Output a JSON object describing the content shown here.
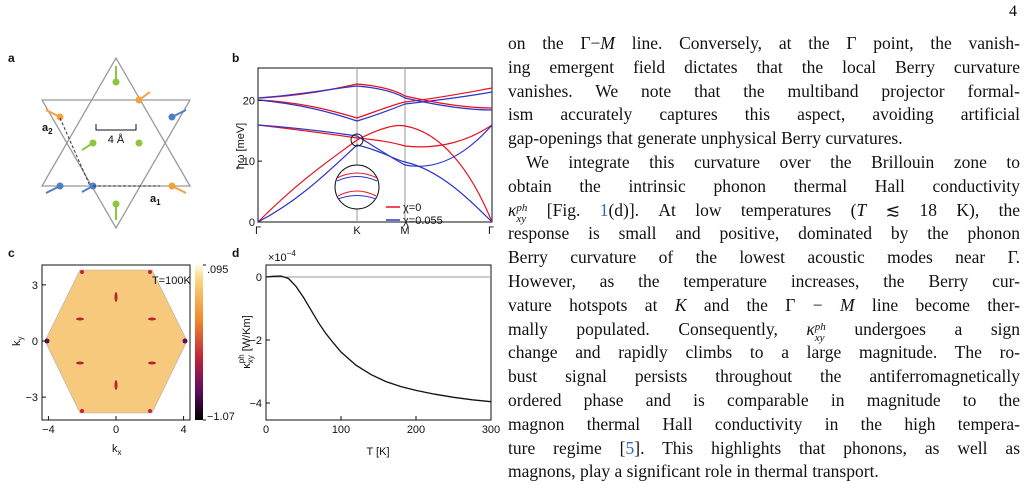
{
  "page_number": "4",
  "figure": {
    "a": {
      "label": "a",
      "scale": "4 Å",
      "a1": {
        "base": "a",
        "sub": "1"
      },
      "a2": {
        "base": "a",
        "sub": "2"
      }
    },
    "b": {
      "label": "b",
      "ylabel": "ħω [meV]",
      "ylim": [
        0,
        25.3
      ],
      "yticks": [
        0,
        10,
        20
      ],
      "categories": [
        "Γ",
        "K",
        "M",
        "Γ"
      ],
      "legend": [
        "χ=0",
        "χ=0.055"
      ],
      "colors": [
        "#e8101e",
        "#2d35c9"
      ]
    },
    "c": {
      "label": "c",
      "xlabel": {
        "base": "k",
        "sub": "x"
      },
      "ylabel": {
        "base": "k",
        "sub": "y"
      },
      "xlim": [
        -4.38,
        4.38
      ],
      "xticks": [
        {
          "value": -4,
          "label": "−4"
        },
        0,
        4
      ],
      "ylim": [
        -4.22,
        4.06
      ],
      "yticks": [
        3,
        0,
        {
          "value": -3,
          "label": "−3"
        }
      ],
      "clim": [
        -1.07,
        0.095
      ],
      "cticks": [
        {
          "value": 0.095,
          "label": ".095"
        },
        {
          "value": -1.07,
          "label": "−1.07"
        }
      ],
      "annotation": "T=100K"
    },
    "d": {
      "label": "d",
      "type": "line",
      "multiplier": {
        "base": "×10",
        "sup": "−4"
      },
      "ylabel": {
        "base": "κ",
        "sub": "xy",
        "sup": "ph",
        "rest": " [W/Km]"
      },
      "xlabel": "T [K]",
      "xlim": [
        0,
        300
      ],
      "xticks": [
        0,
        100,
        200,
        300
      ],
      "ylim": [
        -4.54,
        0.38
      ],
      "yticks": [
        0,
        {
          "value": -2,
          "label": "−2"
        },
        {
          "value": -4,
          "label": "−4"
        }
      ],
      "x": [
        0,
        10,
        20,
        30,
        40,
        50,
        60,
        70,
        80,
        90,
        100,
        120,
        140,
        160,
        180,
        200,
        225,
        250,
        275,
        300
      ],
      "values": [
        0,
        0.02,
        0.03,
        -0.05,
        -0.3,
        -0.65,
        -1.05,
        -1.45,
        -1.8,
        -2.1,
        -2.38,
        -2.8,
        -3.1,
        -3.32,
        -3.48,
        -3.6,
        -3.72,
        -3.82,
        -3.9,
        -3.96
      ]
    }
  },
  "text": {
    "lines": [
      [
        "on the Γ−",
        {
          "math": "M"
        },
        " line. Conversely, at the Γ point, the vanish-"
      ],
      [
        "ing emergent field dictates that the local Berry curvature"
      ],
      [
        "vanishes. We note that the multiband projector formal-"
      ],
      [
        "ism accurately captures this aspect, avoiding artificial"
      ],
      [
        "gap-openings that generate unphysical Berry curvatures."
      ],
      [
        "We integrate this curvature over the Brillouin zone to"
      ],
      [
        "obtain the intrinsic phonon thermal Hall conductivity"
      ],
      [
        {
          "base": "κ",
          "sub": "xy",
          "sup": "ph"
        },
        " [Fig. ",
        {
          "cite": "1"
        },
        "(d)]. At low temperatures (",
        {
          "math": "T"
        },
        " ≲ 18 K), the"
      ],
      [
        "response is small and positive, dominated by the phonon"
      ],
      [
        "Berry curvature of the lowest acoustic modes near Γ."
      ],
      [
        "However, as the temperature increases, the Berry cur-"
      ],
      [
        "vature hotspots at ",
        {
          "math": "K"
        },
        " and the Γ − ",
        {
          "math": "M"
        },
        " line become ther-"
      ],
      [
        "mally populated. Consequently, ",
        {
          "base": "κ",
          "sub": "xy",
          "sup": "ph"
        },
        " undergoes a sign"
      ],
      [
        "change and rapidly climbs to a large magnitude. The ro-"
      ],
      [
        "bust signal persists throughout the antiferromagnetically"
      ],
      [
        "ordered phase and is comparable in magnitude to the"
      ],
      [
        "magnon thermal Hall conductivity in the high tempera-"
      ],
      [
        "ture regime [",
        {
          "cite": "5"
        },
        "]. This highlights that phonons, as well as"
      ],
      [
        "magnons, play a significant role in thermal transport."
      ]
    ]
  }
}
